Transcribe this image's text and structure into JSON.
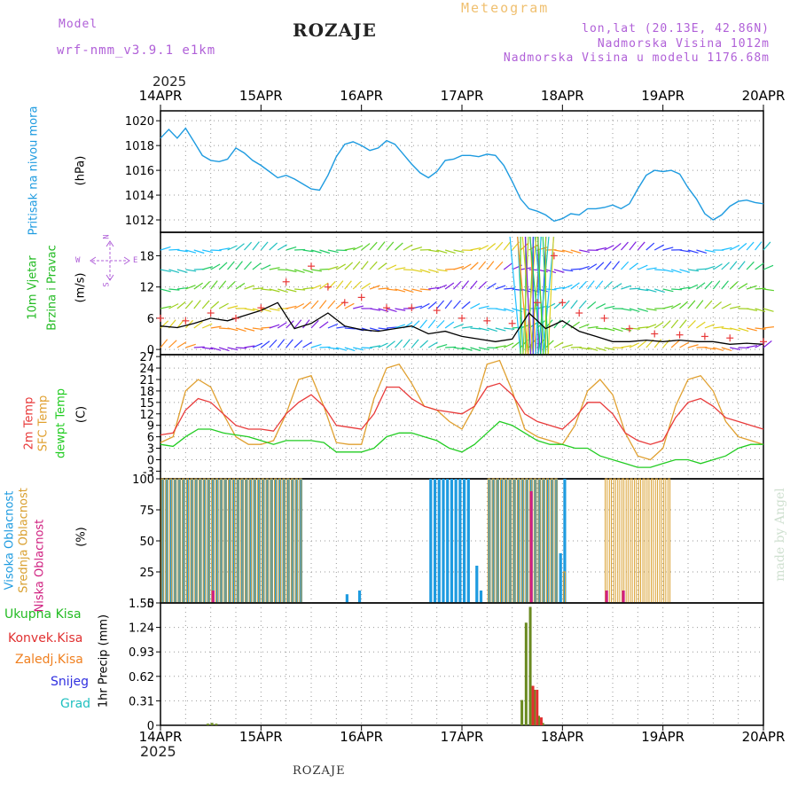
{
  "header": {
    "model_label": "Model",
    "model_name": "wrf-nmm_v3.9.1  e1km",
    "title": "ROZAJE",
    "meteogram": "Meteogram",
    "coords": "lon,lat (20.13E, 42.86N)",
    "altitude": "Nadmorska Visina 1012m",
    "model_altitude": "Nadmorska Visina u modelu 1176.68m",
    "year_top": "2025",
    "year_bottom": "2025",
    "footer_station": "ROZAJE",
    "credit": "made by Angel"
  },
  "dates": [
    "14APR",
    "15APR",
    "16APR",
    "17APR",
    "18APR",
    "19APR",
    "20APR"
  ],
  "panel_labels": {
    "pressure": {
      "name": "Pritisak na nivou mora",
      "unit": "(hPa)"
    },
    "wind": {
      "line1": "10m Vjetar",
      "line2": "Brzina i Pravac",
      "unit": "(m/s)",
      "compass_n": "N",
      "compass_s": "S",
      "compass_w": "W",
      "compass_e": "E"
    },
    "temp": {
      "t2m": "2m Temp",
      "sfc": "SFC Temp",
      "dew": "dewpt Temp",
      "unit": "(C)"
    },
    "cloud": {
      "high": "Visoka Oblacnost",
      "mid": "Srednja Oblacnost",
      "low": "Niska Oblacnost",
      "unit": "(%)"
    },
    "precip": {
      "unit": "1hr Precip (mm)"
    }
  },
  "precip_legend": [
    {
      "label": "Ukupna  Kisa",
      "color": "#22bb22"
    },
    {
      "label": "Konvek.Kisa",
      "color": "#e03030"
    },
    {
      "label": "Zaledj.Kisa",
      "color": "#f08020"
    },
    {
      "label": "Snijeg",
      "color": "#3030e0"
    },
    {
      "label": "Grad",
      "color": "#20c0c0"
    }
  ],
  "colors": {
    "pressure": "#1e9be0",
    "t2m": "#e83a3a",
    "sfc": "#e0a030",
    "dew": "#22cc22",
    "cloud_high": "#1e9be0",
    "cloud_mid": "#d9a030",
    "cloud_low": "#d02080",
    "precip_total": "#6a8a20",
    "precip_conv": "#e03030",
    "wind_speed": "#000000",
    "wind_gust": "#e83a3a"
  },
  "chart_data": [
    {
      "type": "line",
      "panel": "pressure",
      "ylabel": "(hPa)",
      "yticks": [
        1012,
        1014,
        1016,
        1018,
        1020
      ],
      "ylim": [
        1011,
        1020.8
      ],
      "x_unit": "hours since 14APR 00UTC",
      "series": [
        {
          "x": [
            0,
            2,
            4,
            6,
            8,
            10,
            12,
            14,
            16,
            18,
            20,
            22,
            24,
            26,
            28,
            30,
            32,
            34,
            36,
            38,
            40,
            42,
            44,
            46,
            48,
            50,
            52,
            54,
            56,
            58,
            60,
            62,
            64,
            66,
            68,
            70,
            72,
            74,
            76,
            78,
            80,
            82,
            84,
            86,
            88,
            90,
            92,
            94,
            96,
            98,
            100,
            102,
            104,
            106,
            108,
            110,
            112,
            114,
            116,
            118,
            120,
            122,
            124,
            126,
            128,
            130,
            132,
            134,
            136,
            138,
            140,
            142,
            144
          ],
          "y": [
            1018.6,
            1019.3,
            1018.6,
            1019.4,
            1018.3,
            1017.2,
            1016.8,
            1016.7,
            1016.9,
            1017.8,
            1017.4,
            1016.8,
            1016.4,
            1015.9,
            1015.4,
            1015.6,
            1015.3,
            1014.9,
            1014.5,
            1014.4,
            1015.6,
            1017.1,
            1018.1,
            1018.3,
            1018.0,
            1017.6,
            1017.8,
            1018.4,
            1018.1,
            1017.3,
            1016.5,
            1015.8,
            1015.4,
            1015.9,
            1016.8,
            1016.9,
            1017.2,
            1017.2,
            1017.1,
            1017.3,
            1017.2,
            1016.4,
            1015.1,
            1013.7,
            1012.9,
            1012.7,
            1012.4,
            1011.9,
            1012.1,
            1012.5,
            1012.4,
            1012.9,
            1012.9,
            1013.0,
            1013.2,
            1012.9,
            1013.3,
            1014.5,
            1015.6,
            1016.0,
            1015.9,
            1016.0,
            1015.7,
            1014.6,
            1013.7,
            1012.5,
            1012.0,
            1012.4,
            1013.1,
            1013.5,
            1013.6,
            1013.4,
            1013.3
          ]
        }
      ]
    },
    {
      "type": "line",
      "panel": "wind",
      "ylabel": "(m/s)",
      "yticks": [
        0,
        6,
        12,
        18
      ],
      "ylim": [
        -1,
        22.5
      ],
      "x_unit": "hours since 14APR 00UTC",
      "series": [
        {
          "name": "",
          "x": [
            0,
            4,
            8,
            12,
            16,
            20,
            24,
            28,
            32,
            36,
            40,
            44,
            48,
            52,
            56,
            60,
            64,
            68,
            72,
            76,
            80,
            84,
            88,
            92,
            96,
            100,
            104,
            108,
            112,
            116,
            120,
            124,
            128,
            132,
            136,
            140,
            144
          ],
          "y": [
            4.5,
            4.2,
            5.0,
            6.0,
            5.5,
            6.5,
            7.5,
            9.0,
            4.0,
            5.0,
            7.0,
            4.5,
            3.8,
            3.5,
            4.0,
            4.5,
            3.0,
            3.5,
            2.5,
            2.0,
            1.5,
            2.0,
            7.0,
            4.0,
            5.5,
            3.5,
            2.5,
            1.5,
            1.5,
            1.8,
            1.5,
            1.8,
            1.5,
            1.5,
            1.0,
            1.2,
            1.0
          ]
        },
        {
          "name": "",
          "x": [
            0,
            6,
            12,
            18,
            24,
            30,
            36,
            40,
            44,
            48,
            54,
            60,
            66,
            72,
            78,
            84,
            90,
            94,
            96,
            100,
            106,
            112,
            118,
            124,
            130,
            136,
            144
          ],
          "y": [
            6,
            5.5,
            7,
            6,
            8,
            13,
            16,
            12,
            9,
            10,
            8,
            8,
            7.5,
            6,
            5.5,
            5,
            9,
            18,
            9,
            7,
            6,
            4,
            3,
            2.8,
            2.5,
            2.2,
            1.5
          ]
        }
      ]
    },
    {
      "type": "line",
      "panel": "temperature",
      "ylabel": "(C)",
      "yticks": [
        -3,
        0,
        3,
        6,
        9,
        12,
        15,
        18,
        21,
        24,
        27
      ],
      "ylim": [
        -5,
        27.5
      ],
      "x_unit": "hours since 14APR 00UTC",
      "series": [
        {
          "name": "2m Temp",
          "x": [
            0,
            3,
            6,
            9,
            12,
            15,
            18,
            21,
            24,
            27,
            30,
            33,
            36,
            39,
            42,
            45,
            48,
            51,
            54,
            57,
            60,
            63,
            66,
            69,
            72,
            75,
            78,
            81,
            84,
            87,
            90,
            93,
            96,
            99,
            102,
            105,
            108,
            111,
            114,
            117,
            120,
            123,
            126,
            129,
            132,
            135,
            138,
            141,
            144
          ],
          "y": [
            6.5,
            7,
            13,
            16,
            15,
            12,
            9,
            8,
            8,
            7.5,
            12,
            15,
            17,
            14,
            9,
            8.5,
            8,
            12,
            19,
            19,
            16,
            14,
            13,
            12.5,
            12,
            14,
            19,
            20,
            17,
            12,
            10,
            9,
            8,
            11,
            15,
            15,
            12,
            7,
            5,
            4,
            5,
            11,
            15,
            16,
            14,
            11,
            10,
            9,
            8
          ]
        },
        {
          "name": "SFC Temp",
          "x": [
            0,
            3,
            6,
            9,
            12,
            15,
            18,
            21,
            24,
            27,
            30,
            33,
            36,
            39,
            42,
            45,
            48,
            51,
            54,
            57,
            60,
            63,
            66,
            69,
            72,
            75,
            78,
            81,
            84,
            87,
            90,
            93,
            96,
            99,
            102,
            105,
            108,
            111,
            114,
            117,
            120,
            123,
            126,
            129,
            132,
            135,
            138,
            141,
            144
          ],
          "y": [
            4.5,
            6,
            18,
            21,
            19,
            12,
            6,
            4,
            4,
            5,
            12,
            21,
            22,
            14,
            4.5,
            4,
            4,
            16,
            24,
            25,
            20,
            14,
            13,
            10,
            8,
            14,
            25,
            26,
            18,
            8,
            6,
            5,
            4,
            9,
            18,
            21,
            17,
            7,
            1,
            0,
            3,
            14,
            21,
            22,
            18,
            10,
            6,
            5,
            4
          ]
        },
        {
          "name": "dewpt Temp",
          "x": [
            0,
            3,
            6,
            9,
            12,
            15,
            18,
            21,
            24,
            27,
            30,
            33,
            36,
            39,
            42,
            45,
            48,
            51,
            54,
            57,
            60,
            63,
            66,
            69,
            72,
            75,
            78,
            81,
            84,
            87,
            90,
            93,
            96,
            99,
            102,
            105,
            108,
            111,
            114,
            117,
            120,
            123,
            126,
            129,
            132,
            135,
            138,
            141,
            144
          ],
          "y": [
            4,
            3.5,
            6,
            8,
            8,
            7,
            6.5,
            6,
            5,
            4,
            5,
            5,
            5,
            4.5,
            2,
            2,
            2,
            3,
            6,
            7,
            7,
            6,
            5,
            3,
            2,
            4,
            7,
            10,
            9,
            7,
            5,
            4,
            4,
            3,
            3,
            1,
            0,
            -1,
            -2,
            -2,
            -1,
            0,
            0,
            -1,
            0,
            1,
            3,
            4,
            4
          ]
        }
      ]
    },
    {
      "type": "bar",
      "panel": "cloud",
      "ylabel": "(%)",
      "yticks": [
        0,
        25,
        50,
        75,
        100
      ],
      "ylim": [
        0,
        100
      ],
      "x_unit": "hours since 14APR 00UTC",
      "series": [
        {
          "name": "Visoka Oblacnost",
          "segments": [
            [
              0,
              34,
              100
            ],
            [
              44,
              45,
              7
            ],
            [
              47,
              48,
              10
            ],
            [
              64,
              74,
              100
            ],
            [
              75,
              76,
              30
            ],
            [
              76,
              77,
              10
            ],
            [
              78,
              95,
              100
            ],
            [
              95,
              96,
              40
            ],
            [
              96,
              97,
              100
            ]
          ]
        },
        {
          "name": "Srednja Oblacnost",
          "segments": [
            [
              0,
              34,
              100
            ],
            [
              78,
              95,
              100
            ],
            [
              96,
              97,
              25
            ],
            [
              106,
              122,
              100
            ]
          ]
        },
        {
          "name": "Niska Oblacnost",
          "segments": [
            [
              12,
              13,
              10
            ],
            [
              88,
              89,
              90
            ],
            [
              106,
              107,
              10
            ],
            [
              110,
              111,
              10
            ]
          ]
        }
      ]
    },
    {
      "type": "bar",
      "panel": "precip",
      "ylabel": "1hr Precip (mm)",
      "yticks": [
        0,
        0.31,
        0.62,
        0.93,
        1.24,
        1.55
      ],
      "ylim": [
        0,
        1.55
      ],
      "x_unit": "hours since 14APR 00UTC",
      "series": [
        {
          "name": "Ukupna  Kisa",
          "x": [
            11,
            12,
            13,
            86,
            87,
            88,
            89,
            90,
            91
          ],
          "y": [
            0.02,
            0.03,
            0.02,
            0.32,
            1.3,
            1.5,
            0.45,
            0.12,
            0.03
          ]
        },
        {
          "name": "Konvek.Kisa",
          "x": [
            88,
            89,
            90
          ],
          "y": [
            0.5,
            0.45,
            0.1
          ]
        }
      ]
    }
  ]
}
